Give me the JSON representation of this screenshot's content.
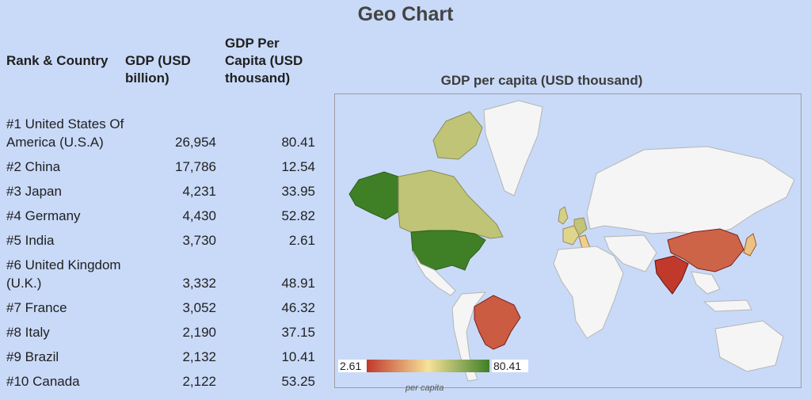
{
  "page_title": "Geo Chart",
  "table": {
    "headers": {
      "rank_country": "Rank & Country",
      "gdp": "GDP (USD billion)",
      "gdp_per_capita": "GDP Per Capita (USD thousand)"
    },
    "rows": [
      {
        "country": "#1 United States Of America (U.S.A)",
        "gdp": "26,954",
        "per_capita": "80.41"
      },
      {
        "country": "#2 China",
        "gdp": "17,786",
        "per_capita": "12.54"
      },
      {
        "country": "#3 Japan",
        "gdp": "4,231",
        "per_capita": "33.95"
      },
      {
        "country": "#4 Germany",
        "gdp": "4,430",
        "per_capita": "52.82"
      },
      {
        "country": "#5 India",
        "gdp": "3,730",
        "per_capita": "2.61"
      },
      {
        "country": "#6 United Kingdom (U.K.)",
        "gdp": "3,332",
        "per_capita": "48.91"
      },
      {
        "country": "#7 France",
        "gdp": "3,052",
        "per_capita": "46.32"
      },
      {
        "country": "#8 Italy",
        "gdp": "2,190",
        "per_capita": "37.15"
      },
      {
        "country": "#9 Brazil",
        "gdp": "2,132",
        "per_capita": "10.41"
      },
      {
        "country": "#10 Canada",
        "gdp": "2,122",
        "per_capita": "53.25"
      }
    ]
  },
  "chart_data": {
    "type": "geo",
    "title": "GDP per capita (USD thousand)",
    "color_axis": {
      "min": 2.61,
      "max": 80.41,
      "min_label": "2.61",
      "max_label": "80.41",
      "colors": [
        "#c0392b",
        "#f6e29a",
        "#3f7f26"
      ],
      "caption": "per capita"
    },
    "regions": [
      {
        "name": "United States",
        "value": 80.41
      },
      {
        "name": "China",
        "value": 12.54
      },
      {
        "name": "Japan",
        "value": 33.95
      },
      {
        "name": "Germany",
        "value": 52.82
      },
      {
        "name": "India",
        "value": 2.61
      },
      {
        "name": "United Kingdom",
        "value": 48.91
      },
      {
        "name": "France",
        "value": 46.32
      },
      {
        "name": "Italy",
        "value": 37.15
      },
      {
        "name": "Brazil",
        "value": 10.41
      },
      {
        "name": "Canada",
        "value": 53.25
      }
    ],
    "land_color": "#f5f5f5",
    "ocean_color": "#c9daf8"
  }
}
